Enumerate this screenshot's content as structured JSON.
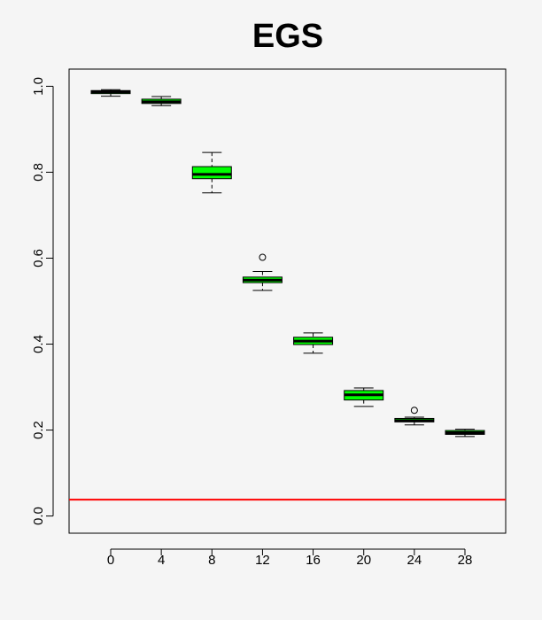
{
  "colors": {
    "background": "#f5f5f5",
    "box_fill": "#00ff00",
    "reference_line": "#ff0000",
    "axis": "#000000"
  },
  "chart_data": {
    "type": "boxplot",
    "title": "EGS",
    "xlabel": "",
    "ylabel": "",
    "categories": [
      "0",
      "4",
      "8",
      "12",
      "16",
      "20",
      "24",
      "28"
    ],
    "boxes": [
      {
        "category": "0",
        "whisker_low": 0.977,
        "q1": 0.983,
        "median": 0.987,
        "q3": 0.99,
        "whisker_high": 0.992,
        "outliers": []
      },
      {
        "category": "4",
        "whisker_low": 0.955,
        "q1": 0.96,
        "median": 0.964,
        "q3": 0.97,
        "whisker_high": 0.976,
        "outliers": []
      },
      {
        "category": "8",
        "whisker_low": 0.752,
        "q1": 0.785,
        "median": 0.795,
        "q3": 0.813,
        "whisker_high": 0.846,
        "outliers": []
      },
      {
        "category": "12",
        "whisker_low": 0.525,
        "q1": 0.543,
        "median": 0.549,
        "q3": 0.556,
        "whisker_high": 0.569,
        "outliers": [
          0.602
        ]
      },
      {
        "category": "16",
        "whisker_low": 0.379,
        "q1": 0.399,
        "median": 0.407,
        "q3": 0.416,
        "whisker_high": 0.426,
        "outliers": []
      },
      {
        "category": "20",
        "whisker_low": 0.255,
        "q1": 0.27,
        "median": 0.282,
        "q3": 0.292,
        "whisker_high": 0.298,
        "outliers": []
      },
      {
        "category": "24",
        "whisker_low": 0.212,
        "q1": 0.219,
        "median": 0.222,
        "q3": 0.227,
        "whisker_high": 0.23,
        "outliers": [
          0.246
        ]
      },
      {
        "category": "28",
        "whisker_low": 0.185,
        "q1": 0.19,
        "median": 0.194,
        "q3": 0.199,
        "whisker_high": 0.202,
        "outliers": []
      }
    ],
    "reference_line": {
      "y": 0.038
    },
    "ylim": [
      -0.04,
      1.04
    ],
    "yticks": [
      0.0,
      0.2,
      0.4,
      0.6,
      0.8,
      1.0
    ],
    "ytick_labels": [
      "0.0",
      "0.2",
      "0.4",
      "0.6",
      "0.8",
      "1.0"
    ],
    "grid": false,
    "legend": "none"
  }
}
